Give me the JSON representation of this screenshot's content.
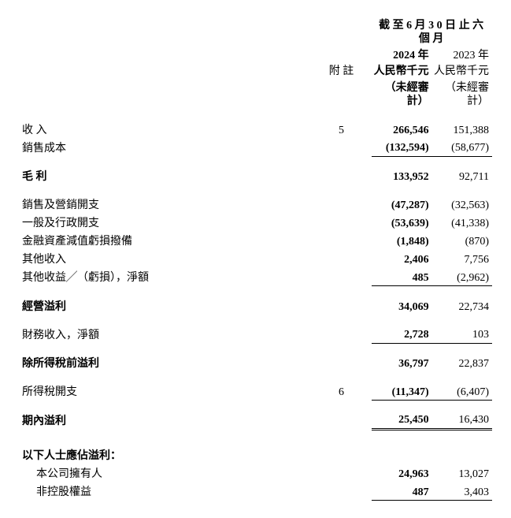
{
  "header": {
    "period_title": "截 至 6 月 3 0 日 止 六 個 月",
    "note_col": "附 註",
    "y2024": {
      "year": "2024 年",
      "currency": "人民幣千元",
      "audit": "（未經審計）"
    },
    "y2023": {
      "year": "2023 年",
      "currency": "人民幣千元",
      "audit": "（未經審計）"
    }
  },
  "rows": {
    "revenue": {
      "label": "收 入",
      "note": "5",
      "v24": "266,546",
      "v23": "151,388"
    },
    "cogs": {
      "label": "銷售成本",
      "note": "",
      "v24": "(132,594)",
      "v23": "(58,677)"
    },
    "gross": {
      "label": "毛 利",
      "note": "",
      "v24": "133,952",
      "v23": "92,711"
    },
    "selling": {
      "label": "銷售及營銷開支",
      "note": "",
      "v24": "(47,287)",
      "v23": "(32,563)"
    },
    "adminexp": {
      "label": "一般及行政開支",
      "note": "",
      "v24": "(53,639)",
      "v23": "(41,338)"
    },
    "impair": {
      "label": "金融資產減值虧損撥備",
      "note": "",
      "v24": "(1,848)",
      "v23": "(870)"
    },
    "otherinc": {
      "label": "其他收入",
      "note": "",
      "v24": "2,406",
      "v23": "7,756"
    },
    "othergain": {
      "label": "其他收益╱（虧損），淨額",
      "note": "",
      "v24": "485",
      "v23": "(2,962)"
    },
    "opprofit": {
      "label": "經營溢利",
      "note": "",
      "v24": "34,069",
      "v23": "22,734"
    },
    "finance": {
      "label": "財務收入，淨額",
      "note": "",
      "v24": "2,728",
      "v23": "103"
    },
    "pbt": {
      "label": "除所得稅前溢利",
      "note": "",
      "v24": "36,797",
      "v23": "22,837"
    },
    "tax": {
      "label": "所得稅開支",
      "note": "6",
      "v24": "(11,347)",
      "v23": "(6,407)"
    },
    "netprofit": {
      "label": "期內溢利",
      "note": "",
      "v24": "25,450",
      "v23": "16,430"
    },
    "attr_header": {
      "label": "以下人士應佔溢利："
    },
    "owners": {
      "label": "本公司擁有人",
      "note": "",
      "v24": "24,963",
      "v23": "13,027"
    },
    "nci": {
      "label": "非控股權益",
      "note": "",
      "v24": "487",
      "v23": "3,403"
    }
  }
}
